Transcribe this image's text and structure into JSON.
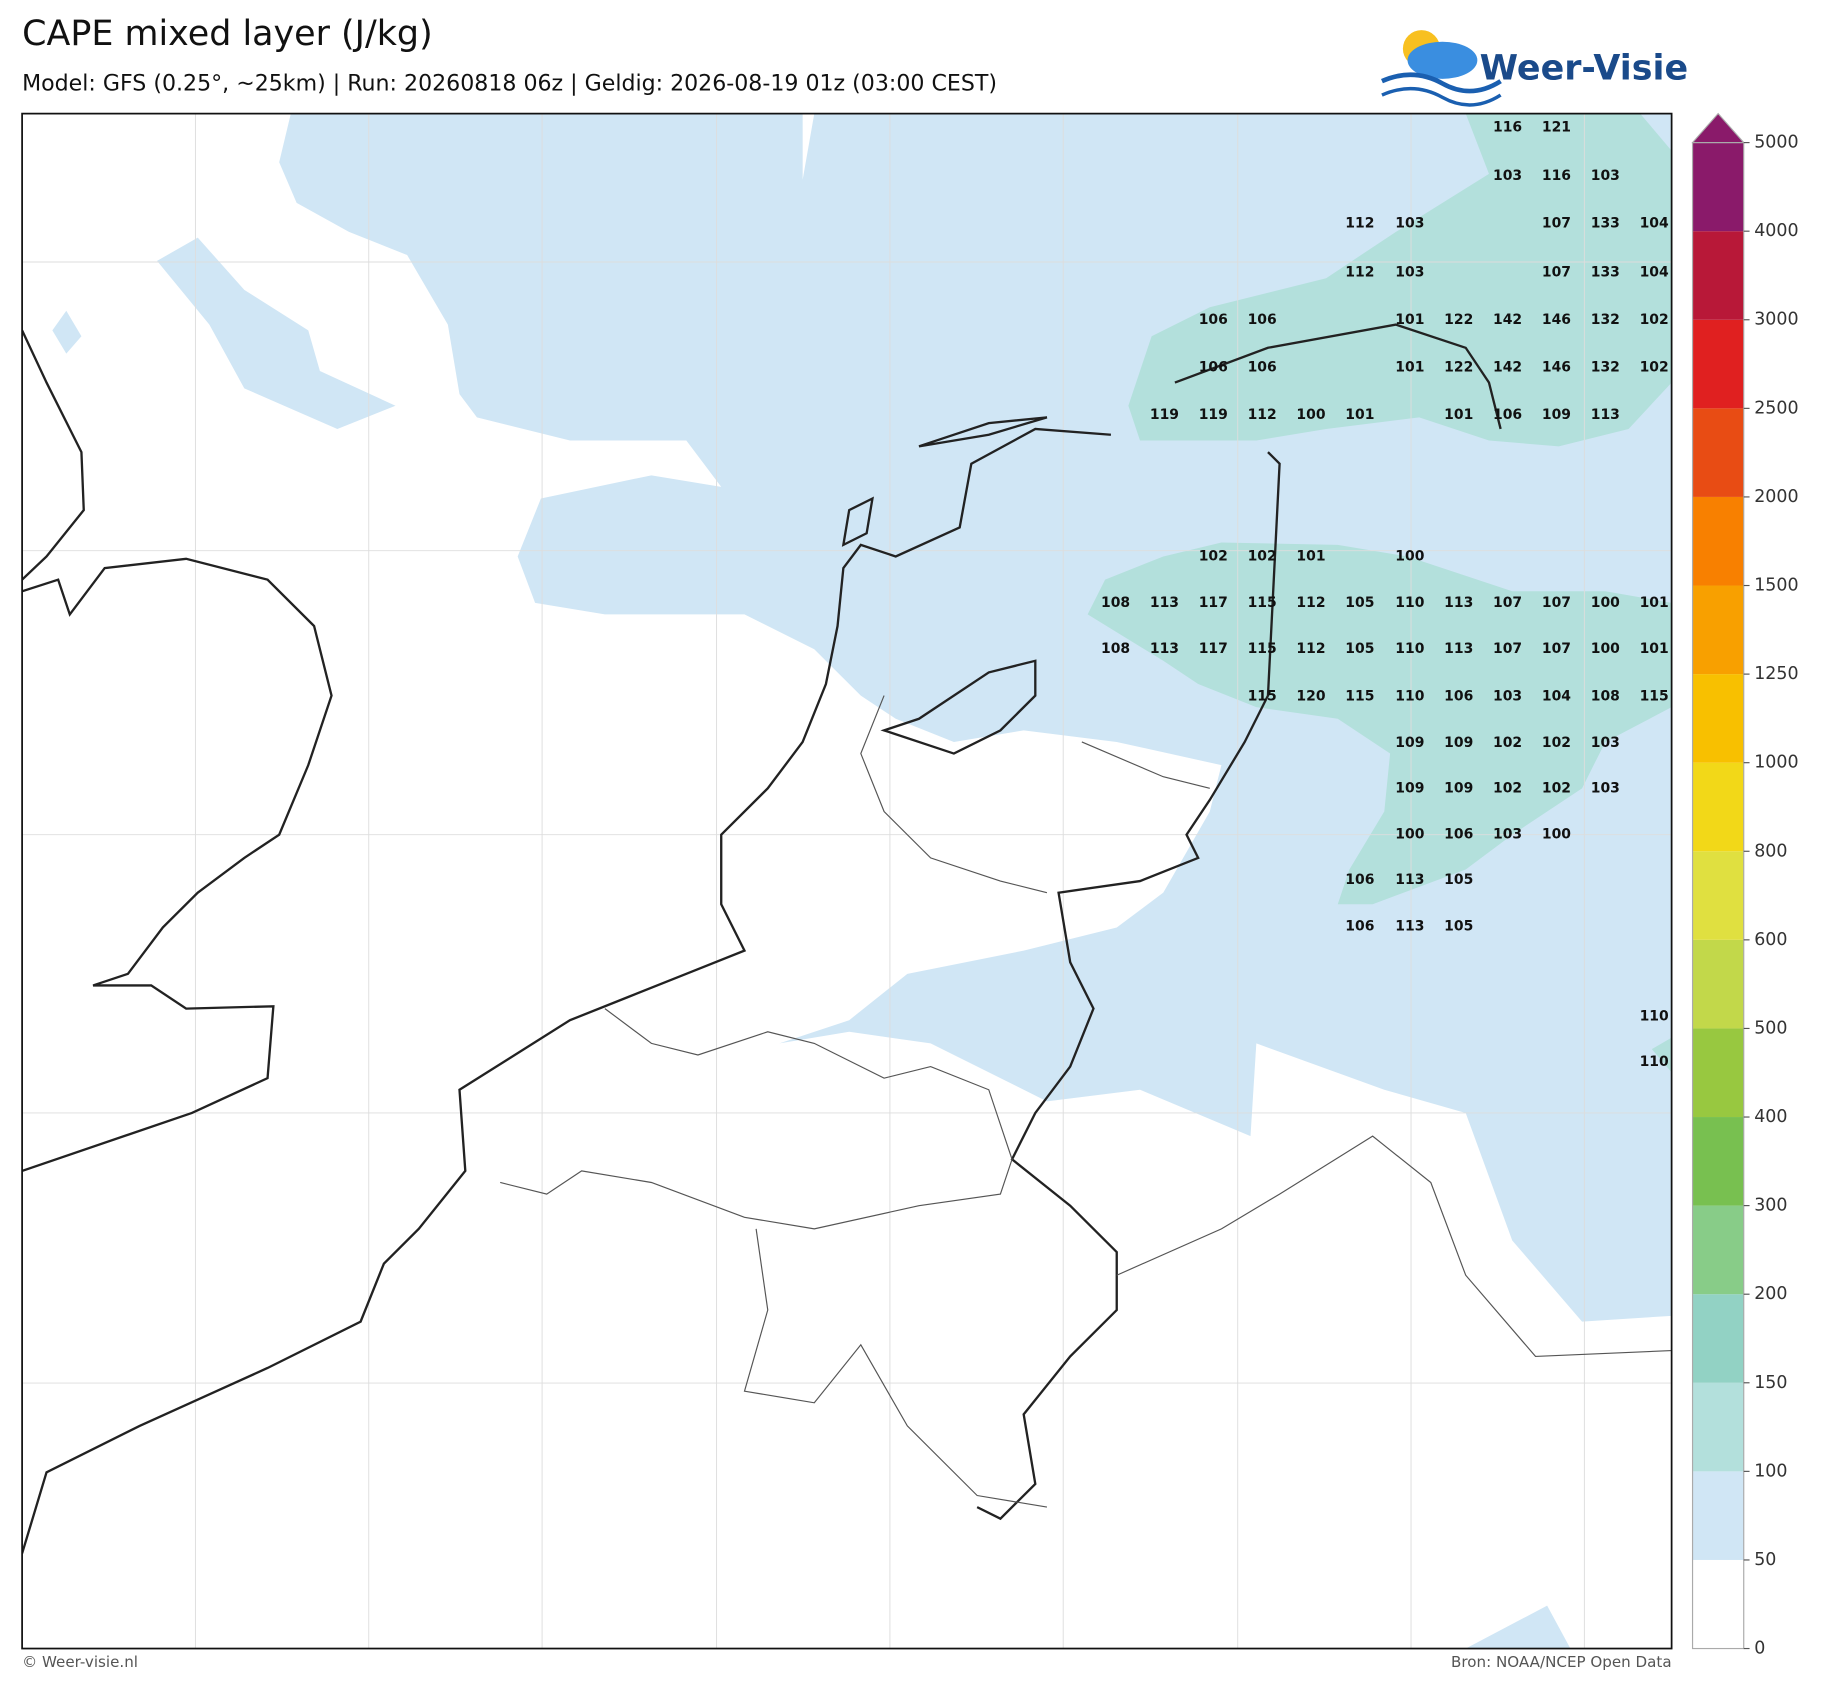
{
  "header": {
    "title": "CAPE mixed layer (J/kg)",
    "subtitle": "Model: GFS (0.25°, ~25km)  |  Run: 20260818 06z  |  Geldig: 2026-08-19 01z (03:00 CEST)",
    "logo": "Weer-Visie"
  },
  "footer": {
    "left": "© Weer-visie.nl",
    "right": "Bron: NOAA/NCEP Open Data"
  },
  "colorbar": {
    "levels": [
      0,
      50,
      100,
      150,
      200,
      300,
      400,
      500,
      600,
      800,
      1000,
      1250,
      1500,
      2000,
      2500,
      3000,
      4000,
      5000
    ],
    "colors": [
      "#ffffff",
      "#d0e6f5",
      "#b3e0dc",
      "#92d2c4",
      "#88cc88",
      "#78c050",
      "#98c840",
      "#c2d84a",
      "#e0e040",
      "#f2d818",
      "#f8c000",
      "#f8a000",
      "#f88000",
      "#e84c14",
      "#e02020",
      "#b81838",
      "#8a1a6a"
    ]
  },
  "labels": [
    [
      null,
      null,
      null,
      null,
      null,
      null,
      null,
      null,
      116,
      121,
      null,
      null
    ],
    [
      null,
      null,
      null,
      null,
      null,
      null,
      null,
      null,
      103,
      116,
      103,
      null
    ],
    [
      null,
      null,
      null,
      null,
      null,
      112,
      103,
      null,
      null,
      107,
      133,
      104
    ],
    [
      null,
      null,
      null,
      null,
      null,
      112,
      103,
      null,
      null,
      107,
      133,
      104
    ],
    [
      null,
      null,
      106,
      106,
      null,
      null,
      101,
      122,
      142,
      146,
      132,
      102
    ],
    [
      null,
      null,
      106,
      106,
      null,
      null,
      101,
      122,
      142,
      146,
      132,
      102
    ],
    [
      null,
      119,
      119,
      112,
      100,
      101,
      null,
      101,
      106,
      109,
      113,
      null
    ],
    [
      null,
      null,
      102,
      102,
      101,
      null,
      100,
      null,
      null,
      null,
      null,
      null
    ],
    [
      108,
      113,
      117,
      115,
      112,
      105,
      110,
      113,
      107,
      107,
      100,
      101
    ],
    [
      108,
      113,
      117,
      115,
      112,
      105,
      110,
      113,
      107,
      107,
      100,
      101
    ],
    [
      null,
      null,
      null,
      115,
      120,
      115,
      110,
      106,
      103,
      104,
      108,
      115
    ],
    [
      null,
      null,
      null,
      null,
      null,
      null,
      109,
      109,
      102,
      102,
      103,
      null
    ],
    [
      null,
      null,
      null,
      null,
      null,
      null,
      109,
      109,
      102,
      102,
      103,
      null
    ],
    [
      null,
      null,
      null,
      null,
      null,
      null,
      100,
      106,
      103,
      100,
      null,
      null
    ],
    [
      null,
      null,
      null,
      null,
      null,
      106,
      113,
      105,
      null,
      null,
      null,
      null
    ],
    [
      null,
      null,
      null,
      null,
      null,
      106,
      113,
      105,
      null,
      null,
      null,
      null
    ],
    [
      null,
      null,
      null,
      null,
      null,
      null,
      null,
      null,
      null,
      null,
      null,
      110
    ],
    [
      null,
      null,
      null,
      null,
      null,
      null,
      null,
      null,
      null,
      null,
      null,
      110
    ]
  ]
}
